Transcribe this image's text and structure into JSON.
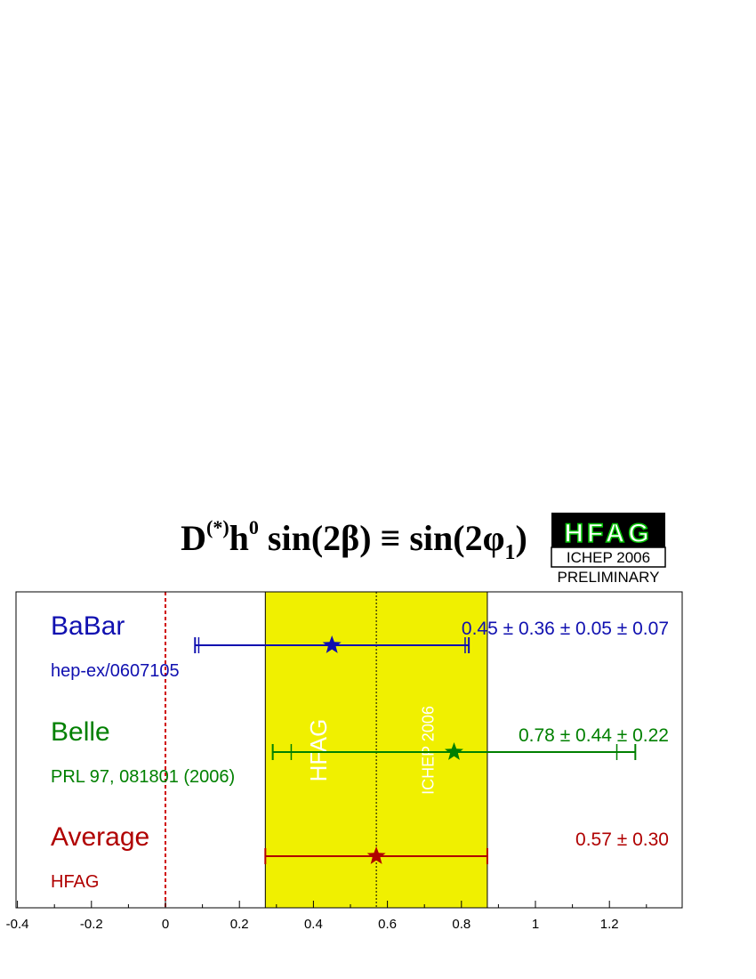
{
  "chart_data": {
    "type": "scatter",
    "title": {
      "prefix": "D",
      "sup1": "(*)",
      "mid": "h",
      "sup2": "0",
      "main": " sin(2β) ≡ sin(2φ",
      "sub": "1",
      "close": ")"
    },
    "badge": {
      "logo": "HFAG",
      "conference": "ICHEP 2006",
      "status": "PRELIMINARY"
    },
    "xlim": [
      -0.4,
      1.4
    ],
    "xticks": [
      -0.4,
      -0.2,
      0,
      0.2,
      0.4,
      0.6,
      0.8,
      1,
      1.2
    ],
    "xtick_labels": [
      "-0.4",
      "-0.2",
      "0",
      "0.2",
      "0.4",
      "0.6",
      "0.8",
      "1",
      "1.2"
    ],
    "zero_line": 0,
    "band": {
      "center": 0.57,
      "low": 0.27,
      "high": 0.87,
      "color": "#f0f000",
      "watermark_left": "HFAG",
      "watermark_right": "ICHEP 2006"
    },
    "measurements": [
      {
        "name": "BaBar",
        "reference": "hep-ex/0607105",
        "value": 0.45,
        "stat_low": 0.09,
        "stat_high": 0.81,
        "tot_low": 0.08,
        "tot_high": 0.82,
        "result_text": "0.45 ± 0.36 ± 0.05 ± 0.07",
        "color": "#1010b0"
      },
      {
        "name": "Belle",
        "reference": "PRL 97, 081801 (2006)",
        "value": 0.78,
        "stat_low": 0.34,
        "stat_high": 1.22,
        "tot_low": 0.29,
        "tot_high": 1.27,
        "result_text": "0.78 ± 0.44 ± 0.22",
        "color": "#008000"
      },
      {
        "name": "Average",
        "reference": "HFAG",
        "value": 0.57,
        "stat_low": 0.27,
        "stat_high": 0.87,
        "tot_low": 0.27,
        "tot_high": 0.87,
        "result_text": "0.57 ± 0.30",
        "color": "#b00000"
      }
    ]
  }
}
